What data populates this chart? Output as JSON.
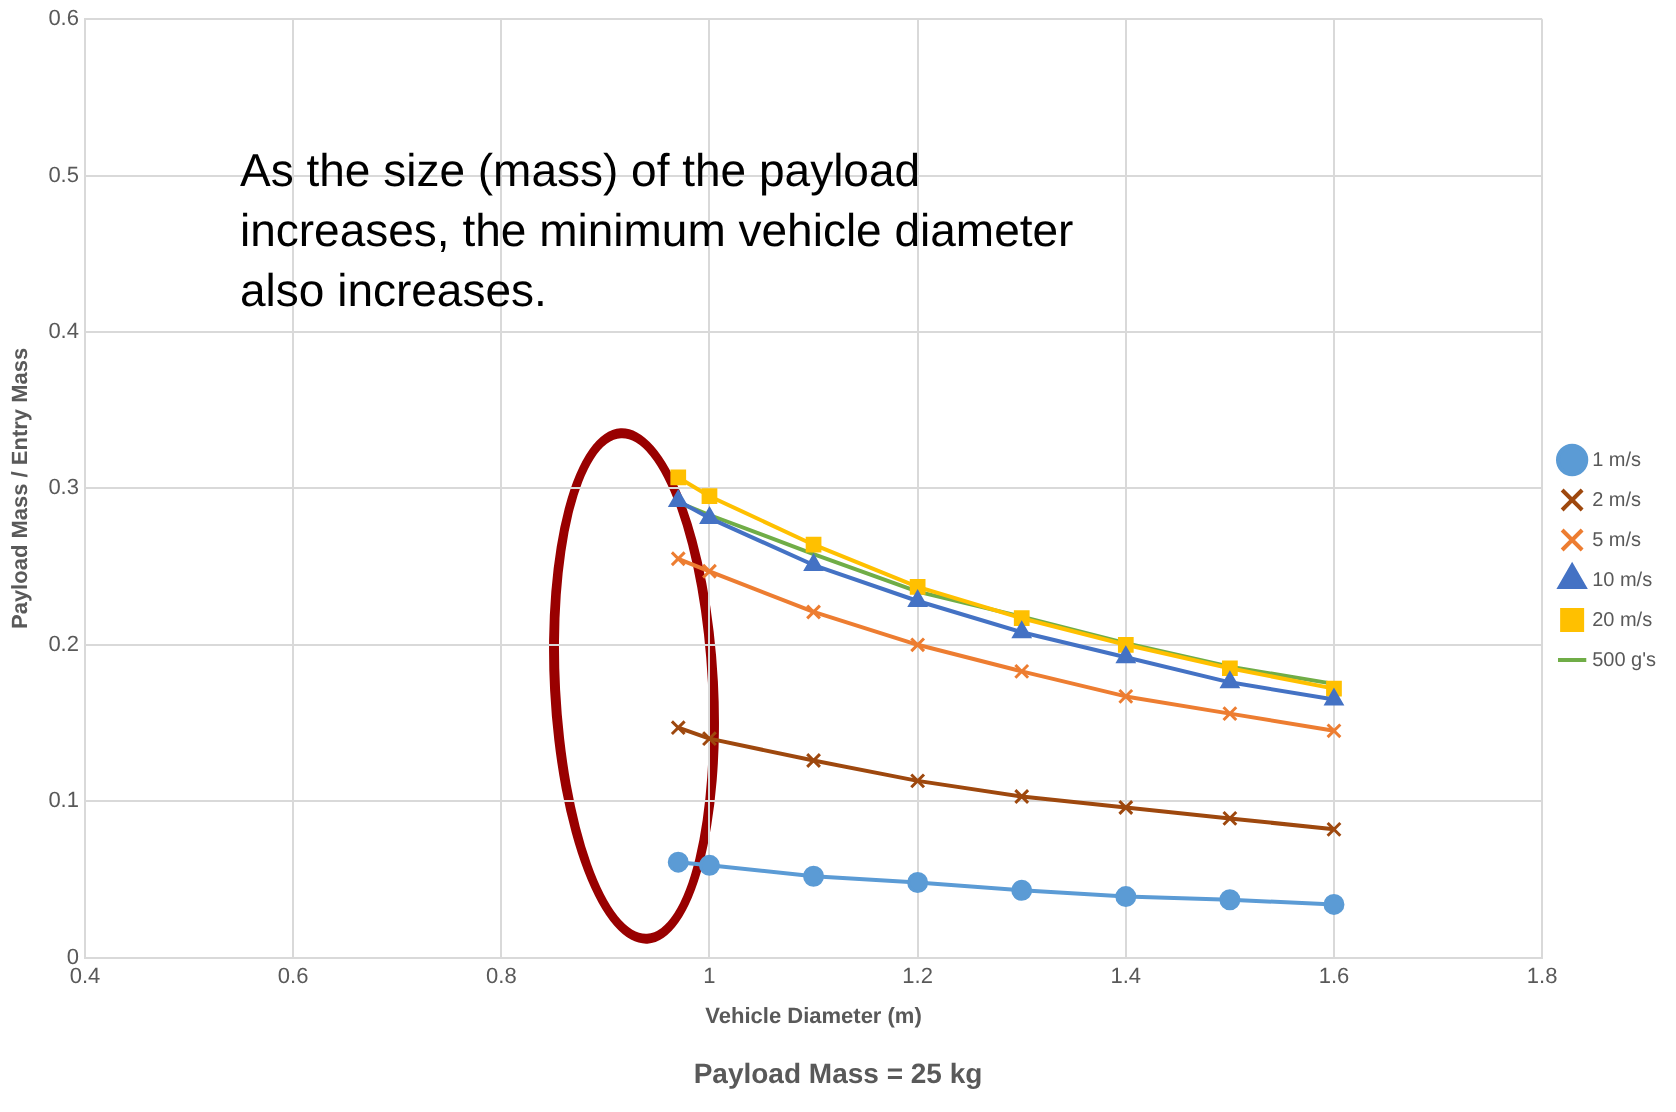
{
  "chart_data": {
    "type": "line",
    "title": "Payload Mass = 25 kg",
    "xlabel": "Vehicle Diameter (m)",
    "ylabel": "Payload Mass / Entry Mass",
    "x": [
      0.97,
      1.0,
      1.1,
      1.2,
      1.3,
      1.4,
      1.5,
      1.6
    ],
    "series": [
      {
        "name": "1 m/s",
        "color": "#5b9bd5",
        "marker": "circle",
        "values": [
          0.061,
          0.059,
          0.052,
          0.048,
          0.043,
          0.039,
          0.037,
          0.034
        ]
      },
      {
        "name": "2 m/s",
        "color": "#9e480e",
        "marker": "cross",
        "values": [
          0.147,
          0.14,
          0.126,
          0.113,
          0.103,
          0.096,
          0.089,
          0.082
        ]
      },
      {
        "name": "5 m/s",
        "color": "#ed7d31",
        "marker": "cross",
        "values": [
          0.255,
          0.247,
          0.221,
          0.2,
          0.183,
          0.167,
          0.156,
          0.145
        ]
      },
      {
        "name": "10 m/s",
        "color": "#4472c4",
        "marker": "triangle",
        "values": [
          0.292,
          0.281,
          0.251,
          0.228,
          0.208,
          0.192,
          0.176,
          0.165
        ]
      },
      {
        "name": "20 m/s",
        "color": "#ffc000",
        "marker": "square",
        "values": [
          0.307,
          0.295,
          0.264,
          0.237,
          0.217,
          0.2,
          0.185,
          0.172
        ]
      },
      {
        "name": "500 g's",
        "color": "#70ad47",
        "marker": "none",
        "values": [
          0.291,
          0.283,
          0.258,
          0.234,
          0.218,
          0.201,
          0.186,
          0.175
        ]
      }
    ],
    "xlim": [
      0.4,
      1.8
    ],
    "xticks": [
      0.4,
      0.6,
      0.8,
      1,
      1.2,
      1.4,
      1.6,
      1.8
    ],
    "ylim": [
      0,
      0.6
    ],
    "yticks": [
      0,
      0.1,
      0.2,
      0.3,
      0.4,
      0.5,
      0.6
    ],
    "grid": true,
    "legend": "right",
    "annotations": [
      "As the size (mass) of the payload increases, the minimum vehicle diameter also increases."
    ]
  }
}
